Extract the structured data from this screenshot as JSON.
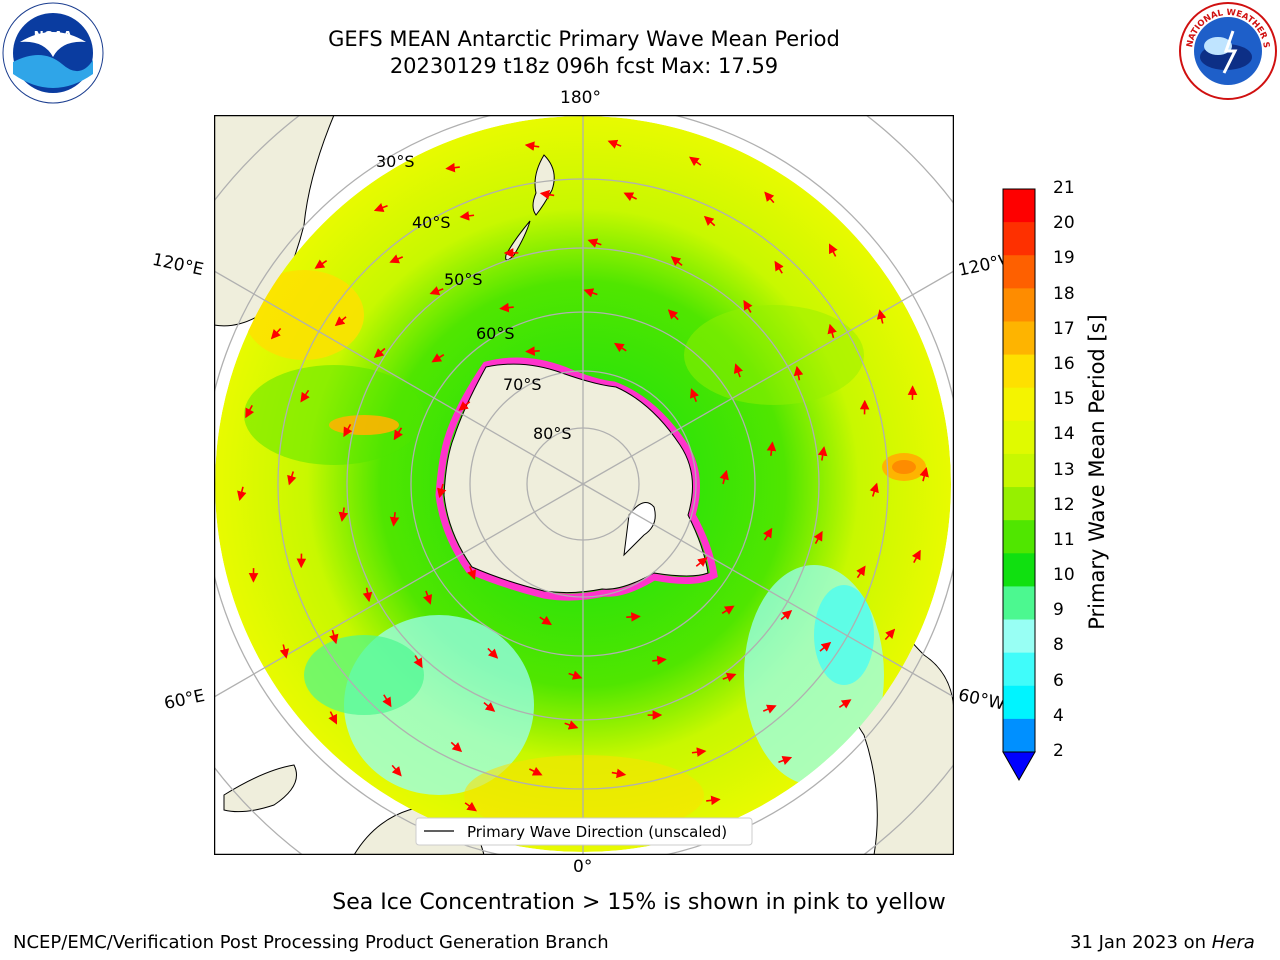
{
  "header": {
    "title_line1": "GEFS MEAN Antarctic Primary Wave Mean Period",
    "title_line2": "20230129 t18z 096h fcst   Max: 17.59"
  },
  "logos": {
    "left": {
      "name": "noaa-logo",
      "text": "NOAA"
    },
    "right": {
      "name": "nws-logo",
      "text": "NATIONAL WEATHER SERVICE"
    }
  },
  "map": {
    "projection": "south-polar-stereographic",
    "longitude_labels": {
      "top": "180°",
      "bottom": "0°",
      "left_upper": "120°E",
      "left_lower": "60°E",
      "right_upper": "120°W",
      "right_lower": "60°W"
    },
    "latitude_labels": [
      "30°S",
      "40°S",
      "50°S",
      "60°S",
      "70°S",
      "80°S"
    ],
    "legend": "Primary Wave Direction (unscaled)",
    "colors": {
      "land": "#efeedc",
      "ice_edge": "#ff33cc",
      "arrow": "#ff0000",
      "grid": "#b0b0b0"
    }
  },
  "colorbar": {
    "title": "Primary Wave Mean Period [s]",
    "ticks": [
      "21",
      "20",
      "19",
      "18",
      "17",
      "16",
      "15",
      "14",
      "13",
      "12",
      "11",
      "10",
      "9",
      "8",
      "6",
      "4",
      "2"
    ],
    "colors": [
      "#fe0000",
      "#fe3000",
      "#fe6000",
      "#fe8c00",
      "#feb400",
      "#fee000",
      "#f4f400",
      "#e0fa00",
      "#c8f800",
      "#96f000",
      "#50e600",
      "#10e010",
      "#4cf890",
      "#98fff4",
      "#40fcfa",
      "#00f4ff",
      "#0090ff",
      "#0050ff"
    ],
    "extend_color": "#0000ff"
  },
  "caption": "Sea Ice Concentration > 15% is shown in pink to yellow",
  "footer": {
    "left": "NCEP/EMC/Verification Post Processing Product Generation Branch",
    "right_date": "31 Jan 2023 on ",
    "right_machine": "Hera"
  }
}
